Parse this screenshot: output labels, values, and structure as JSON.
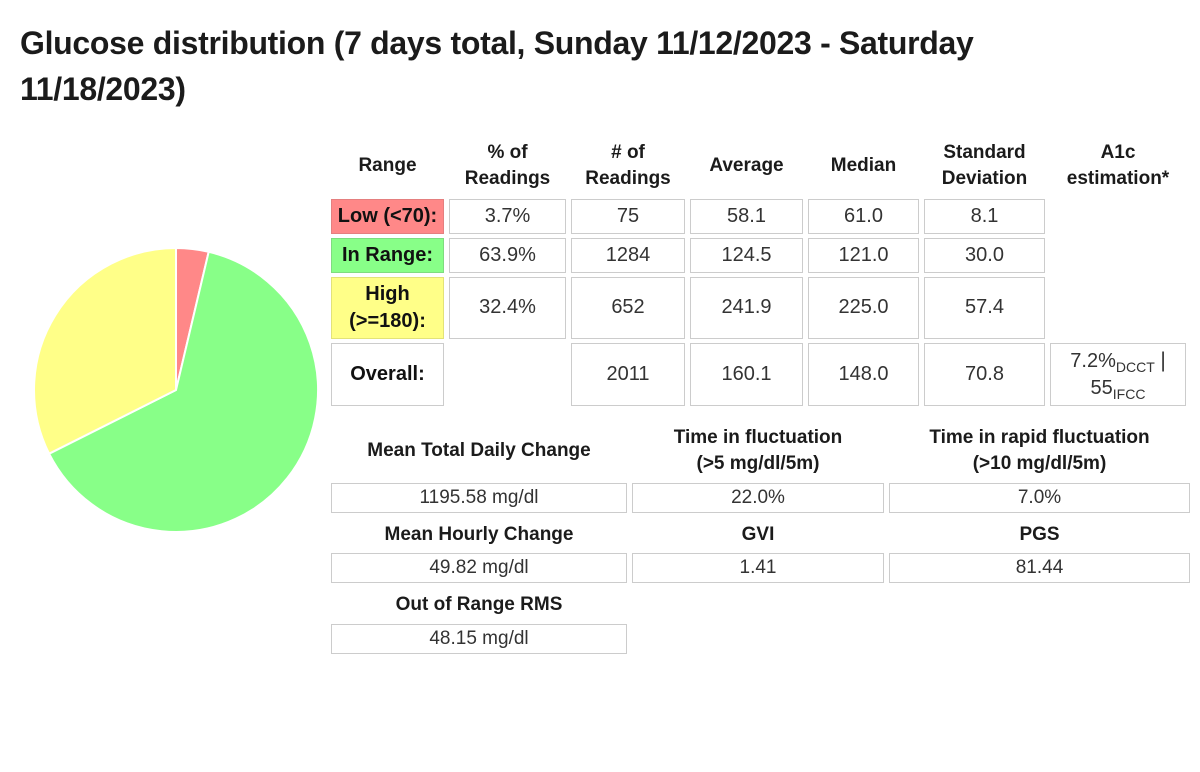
{
  "title": "Glucose distribution (7 days total, Sunday 11/12/2023 - Saturday 11/18/2023)",
  "colors": {
    "low": "#ff8888",
    "in_range": "#88ff88",
    "high": "#ffff88",
    "cell_border": "#cccccc",
    "low_border": "#e57f7f",
    "in_range_border": "#7fdc7f",
    "high_border": "#e3e378",
    "overall_border": "#cccccc",
    "text": "#333333",
    "heading_text": "#1b1b1b",
    "pie_stroke": "#ffffff"
  },
  "distribution_table": {
    "columns": [
      "Range",
      "% of\nReadings",
      "# of\nReadings",
      "Average",
      "Median",
      "Standard\nDeviation",
      "A1c\nestimation*"
    ],
    "rows": [
      {
        "name": "low",
        "label": "Low (<70):",
        "bg": "#ff8888",
        "border": "#e57f7f",
        "values": [
          "3.7%",
          "75",
          "58.1",
          "61.0",
          "8.1"
        ],
        "a1c": null
      },
      {
        "name": "in-range",
        "label": "In Range:",
        "bg": "#88ff88",
        "border": "#7fdc7f",
        "values": [
          "63.9%",
          "1284",
          "124.5",
          "121.0",
          "30.0"
        ],
        "a1c": null
      },
      {
        "name": "high",
        "label": "High\n(>=180):",
        "bg": "#ffff88",
        "border": "#e3e378",
        "values": [
          "32.4%",
          "652",
          "241.9",
          "225.0",
          "57.4"
        ],
        "a1c": null
      },
      {
        "name": "overall",
        "label": "Overall:",
        "bg": "#ffffff",
        "border": "#cccccc",
        "values": [
          "",
          "2011",
          "160.1",
          "148.0",
          "70.8"
        ],
        "a1c": {
          "dcct": "7.2%",
          "dcct_sub": "DCCT",
          "sep": "|",
          "ifcc": "55",
          "ifcc_sub": "IFCC"
        }
      }
    ]
  },
  "variability_table": {
    "rows": [
      {
        "type": "header",
        "cells": [
          "Mean Total Daily Change",
          "Time in fluctuation\n(>5 mg/dl/5m)",
          "Time in rapid fluctuation\n(>10 mg/dl/5m)"
        ]
      },
      {
        "type": "value",
        "cells": [
          "1195.58 mg/dl",
          "22.0%",
          "7.0%"
        ]
      },
      {
        "type": "header",
        "cells": [
          "Mean Hourly Change",
          "GVI",
          "PGS"
        ]
      },
      {
        "type": "value",
        "cells": [
          "49.82 mg/dl",
          "1.41",
          "81.44"
        ]
      },
      {
        "type": "header",
        "cells": [
          "Out of Range RMS",
          "",
          ""
        ]
      },
      {
        "type": "value",
        "cells": [
          "48.15 mg/dl",
          "",
          ""
        ]
      }
    ]
  },
  "chart_data": {
    "type": "pie",
    "title": "Glucose distribution (7 days total, Sunday 11/12/2023 - Saturday 11/18/2023)",
    "legend_position": "none",
    "start_angle_deg_from_top": 0,
    "direction": "clockwise",
    "slices": [
      {
        "name": "low",
        "label": "Low (<70)",
        "percent": 3.7,
        "color": "#ff8888"
      },
      {
        "name": "in-range",
        "label": "In Range",
        "percent": 63.9,
        "color": "#88ff88"
      },
      {
        "name": "high",
        "label": "High (>=180)",
        "percent": 32.4,
        "color": "#ffff88"
      }
    ]
  }
}
